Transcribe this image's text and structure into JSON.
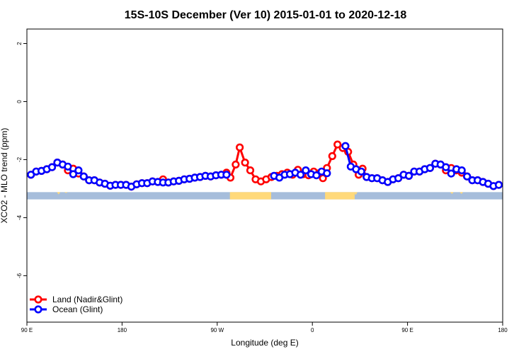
{
  "chart_data": {
    "type": "line",
    "title": "15S-10S December (Ver 10)   2015-01-01 to 2020-12-18",
    "xlabel": "Longitude (deg E)",
    "ylabel": "XCO2 - MLO trend (ppm)",
    "xlim": [
      90,
      540
    ],
    "ylim": [
      -7.6,
      2.5
    ],
    "x_ticks": [
      {
        "value": 90,
        "label": "90 E"
      },
      {
        "value": 180,
        "label": "180"
      },
      {
        "value": 270,
        "label": "90 W"
      },
      {
        "value": 360,
        "label": "0"
      },
      {
        "value": 450,
        "label": "90 E"
      },
      {
        "value": 540,
        "label": "180"
      }
    ],
    "y_ticks": [
      {
        "value": 2,
        "label": "2"
      },
      {
        "value": 0,
        "label": "0"
      },
      {
        "value": -2,
        "label": "-2"
      },
      {
        "value": -4,
        "label": "-4"
      },
      {
        "value": -6,
        "label": "-6"
      }
    ],
    "legend": {
      "position": "bottom-left"
    },
    "colors": {
      "land": "#ff0000",
      "ocean": "#0000ff",
      "ocean_band": "#a6bddb",
      "land_band": "#ffd97a"
    },
    "series": [
      {
        "name": "Land (Nadir&Glint)",
        "color": "#ff0000",
        "points": [
          [
            93.8,
            -2.52
          ],
          [
            98.8,
            -2.41
          ],
          [
            103.8,
            -2.39
          ],
          [
            108.8,
            -2.33
          ],
          [
            113.8,
            -2.26
          ],
          [
            118.8,
            -2.1
          ],
          [
            123.8,
            -2.17
          ],
          [
            128.8,
            -2.37
          ],
          [
            133.8,
            -2.31
          ],
          [
            138.8,
            -2.48
          ],
          [
            143.8,
            -2.58
          ],
          [
            148.8,
            -2.71
          ],
          [
            153.8,
            -2.71
          ],
          [
            158.8,
            -2.79
          ],
          [
            163.8,
            -2.83
          ],
          [
            168.8,
            -2.9
          ],
          [
            173.8,
            -2.87
          ],
          [
            178.8,
            -2.87
          ],
          [
            183.8,
            -2.87
          ],
          [
            188.8,
            -2.93
          ],
          [
            193.8,
            -2.85
          ],
          [
            198.8,
            -2.81
          ],
          [
            203.8,
            -2.81
          ],
          [
            208.8,
            -2.75
          ],
          [
            213.8,
            -2.77
          ],
          [
            218.8,
            -2.68
          ],
          [
            223.8,
            -2.79
          ],
          [
            228.8,
            -2.75
          ],
          [
            233.8,
            -2.73
          ],
          [
            238.8,
            -2.68
          ],
          [
            243.8,
            -2.66
          ],
          [
            248.8,
            -2.62
          ],
          [
            253.8,
            -2.6
          ],
          [
            258.8,
            -2.56
          ],
          [
            263.8,
            -2.58
          ],
          [
            268.8,
            -2.54
          ],
          [
            273.8,
            -2.52
          ],
          [
            278.8,
            -2.45
          ],
          [
            282.5,
            -2.62
          ],
          [
            287.5,
            -2.17
          ],
          [
            291.3,
            -1.58
          ],
          [
            296.3,
            -2.1
          ],
          [
            301.3,
            -2.37
          ],
          [
            306.3,
            -2.68
          ],
          [
            311.3,
            -2.75
          ],
          [
            316.3,
            -2.68
          ],
          [
            321.3,
            -2.6
          ],
          [
            326.3,
            -2.56
          ],
          [
            331.3,
            -2.5
          ],
          [
            336.3,
            -2.45
          ],
          [
            341.3,
            -2.52
          ],
          [
            346.3,
            -2.35
          ],
          [
            351.3,
            -2.5
          ],
          [
            356.3,
            -2.54
          ],
          [
            361.3,
            -2.41
          ],
          [
            366.3,
            -2.47
          ],
          [
            370.0,
            -2.64
          ],
          [
            373.8,
            -2.29
          ],
          [
            378.8,
            -1.88
          ],
          [
            383.8,
            -1.48
          ],
          [
            388.8,
            -1.6
          ],
          [
            393.8,
            -1.73
          ],
          [
            398.8,
            -2.17
          ],
          [
            403.8,
            -2.52
          ],
          [
            407.5,
            -2.31
          ],
          [
            411.3,
            -2.6
          ],
          [
            416.3,
            -2.64
          ],
          [
            421.3,
            -2.64
          ],
          [
            426.3,
            -2.71
          ],
          [
            431.3,
            -2.77
          ],
          [
            436.3,
            -2.68
          ],
          [
            441.3,
            -2.64
          ],
          [
            446.3,
            -2.52
          ],
          [
            451.3,
            -2.56
          ],
          [
            456.3,
            -2.41
          ],
          [
            461.3,
            -2.41
          ],
          [
            466.3,
            -2.33
          ],
          [
            471.3,
            -2.29
          ],
          [
            476.3,
            -2.14
          ],
          [
            481.3,
            -2.17
          ],
          [
            486.3,
            -2.37
          ],
          [
            491.3,
            -2.29
          ],
          [
            496.3,
            -2.37
          ],
          [
            501.3,
            -2.45
          ],
          [
            506.3,
            -2.58
          ],
          [
            511.3,
            -2.71
          ],
          [
            516.3,
            -2.71
          ],
          [
            521.3,
            -2.77
          ],
          [
            526.3,
            -2.83
          ],
          [
            531.3,
            -2.91
          ],
          [
            536.3,
            -2.87
          ]
        ]
      },
      {
        "name": "Ocean (Glint)",
        "color": "#0000ff",
        "points": [
          [
            93.8,
            -2.52
          ],
          [
            98.8,
            -2.41
          ],
          [
            103.8,
            -2.39
          ],
          [
            108.8,
            -2.33
          ],
          [
            113.8,
            -2.26
          ],
          [
            118.8,
            -2.1
          ],
          [
            123.8,
            -2.17
          ],
          [
            128.8,
            -2.24
          ],
          [
            133.8,
            -2.5
          ],
          [
            138.8,
            -2.37
          ],
          [
            143.8,
            -2.58
          ],
          [
            148.8,
            -2.71
          ],
          [
            153.8,
            -2.71
          ],
          [
            158.8,
            -2.79
          ],
          [
            163.8,
            -2.83
          ],
          [
            168.8,
            -2.9
          ],
          [
            173.8,
            -2.87
          ],
          [
            178.8,
            -2.87
          ],
          [
            183.8,
            -2.87
          ],
          [
            188.8,
            -2.93
          ],
          [
            193.8,
            -2.85
          ],
          [
            198.8,
            -2.81
          ],
          [
            203.8,
            -2.81
          ],
          [
            208.8,
            -2.75
          ],
          [
            213.8,
            -2.77
          ],
          [
            218.8,
            -2.79
          ],
          [
            223.8,
            -2.79
          ],
          [
            228.8,
            -2.75
          ],
          [
            233.8,
            -2.73
          ],
          [
            238.8,
            -2.68
          ],
          [
            243.8,
            -2.66
          ],
          [
            248.8,
            -2.62
          ],
          [
            253.8,
            -2.6
          ],
          [
            258.8,
            -2.56
          ],
          [
            263.8,
            -2.58
          ],
          [
            268.8,
            -2.54
          ],
          [
            273.8,
            -2.52
          ],
          [
            278.8,
            -2.52
          ],
          [
            323.8,
            -2.56
          ],
          [
            328.8,
            -2.62
          ],
          [
            333.8,
            -2.52
          ],
          [
            338.8,
            -2.5
          ],
          [
            343.8,
            -2.45
          ],
          [
            348.8,
            -2.52
          ],
          [
            353.8,
            -2.37
          ],
          [
            358.8,
            -2.5
          ],
          [
            363.8,
            -2.54
          ],
          [
            368.8,
            -2.41
          ],
          [
            373.8,
            -2.47
          ],
          [
            391.3,
            -1.53
          ],
          [
            396.3,
            -2.24
          ],
          [
            401.3,
            -2.33
          ],
          [
            406.3,
            -2.41
          ],
          [
            411.3,
            -2.6
          ],
          [
            416.3,
            -2.64
          ],
          [
            421.3,
            -2.64
          ],
          [
            426.3,
            -2.71
          ],
          [
            431.3,
            -2.77
          ],
          [
            436.3,
            -2.68
          ],
          [
            441.3,
            -2.64
          ],
          [
            446.3,
            -2.52
          ],
          [
            451.3,
            -2.56
          ],
          [
            456.3,
            -2.41
          ],
          [
            461.3,
            -2.41
          ],
          [
            466.3,
            -2.33
          ],
          [
            471.3,
            -2.29
          ],
          [
            476.3,
            -2.14
          ],
          [
            481.3,
            -2.17
          ],
          [
            486.3,
            -2.26
          ],
          [
            491.3,
            -2.48
          ],
          [
            496.3,
            -2.33
          ],
          [
            501.3,
            -2.37
          ],
          [
            506.3,
            -2.58
          ],
          [
            511.3,
            -2.71
          ],
          [
            516.3,
            -2.71
          ],
          [
            521.3,
            -2.77
          ],
          [
            526.3,
            -2.83
          ],
          [
            531.3,
            -2.91
          ],
          [
            536.3,
            -2.87
          ]
        ]
      }
    ],
    "land_ocean_band": {
      "y_range": [
        -3.37,
        -3.12
      ],
      "land_x_ranges": [
        [
          282,
          321
        ],
        [
          372,
          400
        ]
      ],
      "land_spikes": [
        [
          120,
          -3.2
        ],
        [
          127,
          -3.15
        ],
        [
          401,
          -3.22
        ],
        [
          492,
          -3.18
        ],
        [
          495,
          -3.12
        ],
        [
          501,
          -3.18
        ]
      ]
    }
  }
}
